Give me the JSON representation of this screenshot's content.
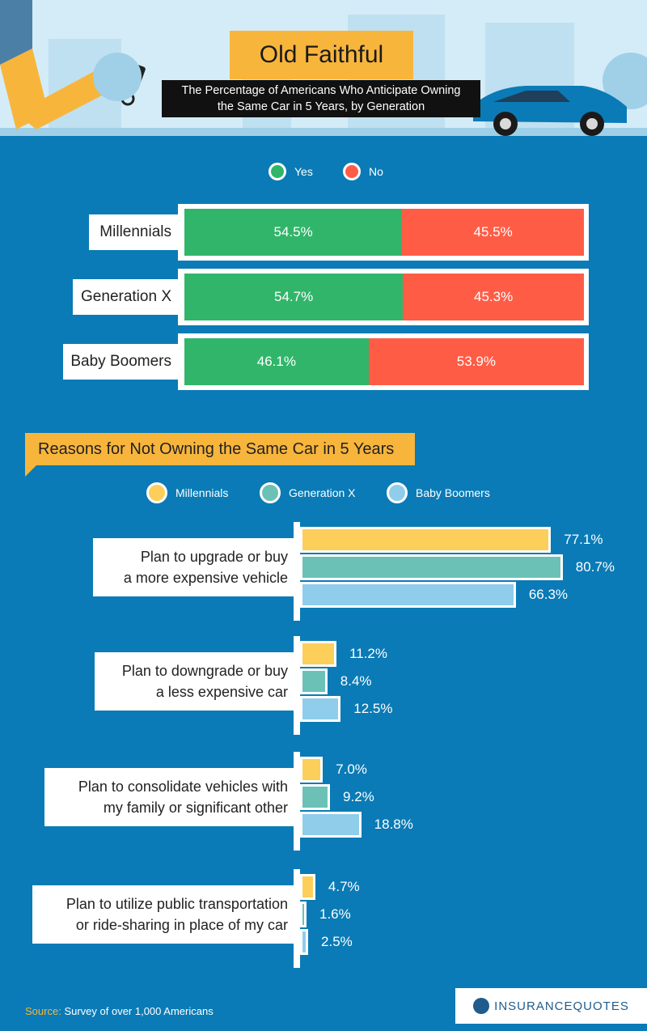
{
  "header": {
    "title": "Old Faithful",
    "subtitle_line1": "The Percentage of Americans Who Anticipate Owning",
    "subtitle_line2": "the Same Car in 5 Years, by Generation"
  },
  "legend_top": [
    {
      "label": "Yes",
      "color": "#31b56a"
    },
    {
      "label": "No",
      "color": "#ff5c46"
    }
  ],
  "chart_data": [
    {
      "type": "bar",
      "stacked": true,
      "orientation": "horizontal",
      "title": "Old Faithful",
      "categories": [
        "Millennials",
        "Generation X",
        "Baby Boomers"
      ],
      "series": [
        {
          "name": "Yes",
          "values": [
            54.5,
            54.7,
            46.1
          ],
          "labels": [
            "54.5%",
            "54.7%",
            "46.1%"
          ],
          "color": "#31b56a"
        },
        {
          "name": "No",
          "values": [
            45.5,
            45.3,
            53.9
          ],
          "labels": [
            "45.5%",
            "45.3%",
            "53.9%"
          ],
          "color": "#ff5c46"
        }
      ],
      "xlim": [
        0,
        100
      ]
    },
    {
      "type": "bar",
      "orientation": "horizontal",
      "title": "Reasons for Not Owning the Same Car in 5 Years",
      "categories": [
        {
          "line1": "Plan to upgrade or buy",
          "line2": "a more expensive vehicle"
        },
        {
          "line1": "Plan to downgrade or buy",
          "line2": "a less expensive car"
        },
        {
          "line1": "Plan to consolidate vehicles with",
          "line2": "my family or significant other"
        },
        {
          "line1": "Plan to utilize public transportation",
          "line2": "or ride-sharing in place of my car"
        }
      ],
      "series": [
        {
          "name": "Millennials",
          "values": [
            77.1,
            11.2,
            7.0,
            4.7
          ],
          "labels": [
            "77.1%",
            "11.2%",
            "7.0%",
            "4.7%"
          ],
          "color": "#fccf5a"
        },
        {
          "name": "Generation X",
          "values": [
            80.7,
            8.4,
            9.2,
            1.6
          ],
          "labels": [
            "80.7%",
            "8.4%",
            "9.2%",
            "1.6%"
          ],
          "color": "#6cc1b6"
        },
        {
          "name": "Baby Boomers",
          "values": [
            66.3,
            12.5,
            18.8,
            2.5
          ],
          "labels": [
            "66.3%",
            "12.5%",
            "18.8%",
            "2.5%"
          ],
          "color": "#8fcdeb"
        }
      ],
      "xlim": [
        0,
        100
      ]
    }
  ],
  "footer": {
    "source_label": "Source:",
    "source_text": "Survey of over 1,000 Americans",
    "logo_text": "INSURANCEQUOTES"
  }
}
